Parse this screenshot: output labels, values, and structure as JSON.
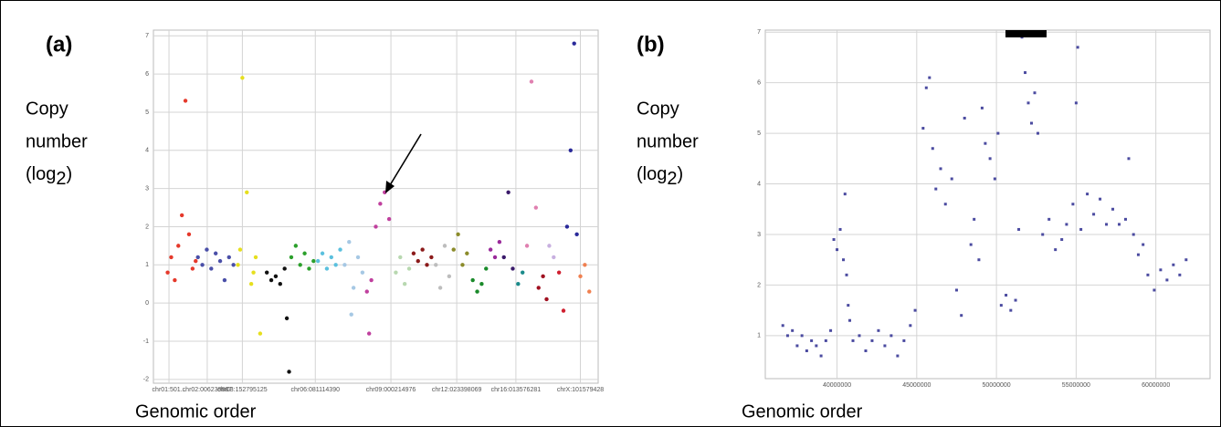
{
  "chart_data": [
    {
      "type": "scatter",
      "panel_label": "(a)",
      "ylabel_parts": [
        "Copy",
        "number",
        "(log",
        "2",
        ")"
      ],
      "xlabel": "Genomic order",
      "ylim": [
        -2.1,
        7.15
      ],
      "yticks": [
        -2,
        -1,
        0,
        1,
        2,
        3,
        4,
        5,
        6,
        7
      ],
      "xlim": [
        0,
        100
      ],
      "xticks": [
        {
          "value": 3.5,
          "label": "chr01:501..."
        },
        {
          "value": 12.1,
          "label": "chr02:006239887"
        },
        {
          "value": 20,
          "label": "chr03:152795125"
        },
        {
          "value": 36.4,
          "label": "chr06:081114390"
        },
        {
          "value": 53.4,
          "label": "chr09:000214976"
        },
        {
          "value": 68.2,
          "label": "chr12:023398069"
        },
        {
          "value": 81.5,
          "label": "chr16:013576281"
        },
        {
          "value": 96,
          "label": "chrX:101579428"
        }
      ],
      "grid": true,
      "series": [
        {
          "color": "#e5392b",
          "x": [
            3.2,
            4,
            4.8,
            5.6,
            6.4,
            7.2,
            8,
            8.8,
            9.5
          ],
          "values": [
            0.8,
            1.2,
            0.6,
            1.5,
            2.3,
            5.3,
            1.8,
            0.9,
            1.1
          ]
        },
        {
          "color": "#4a4fa8",
          "x": [
            10,
            11,
            12,
            13,
            14,
            15,
            16,
            17,
            18
          ],
          "values": [
            1.2,
            1.0,
            1.4,
            0.9,
            1.3,
            1.1,
            0.6,
            1.2,
            1.0
          ]
        },
        {
          "color": "#e6df1e",
          "x": [
            19,
            19.5,
            20,
            21,
            22,
            22.5,
            23,
            24
          ],
          "values": [
            1.0,
            1.4,
            5.9,
            2.9,
            0.5,
            0.8,
            1.2,
            -0.8
          ]
        },
        {
          "color": "#111111",
          "x": [
            25.5,
            26.5,
            27.5,
            28.5,
            29.5,
            30,
            30.5
          ],
          "values": [
            0.8,
            0.6,
            0.7,
            0.5,
            0.9,
            -0.4,
            -1.8
          ]
        },
        {
          "color": "#2ca02c",
          "x": [
            31,
            32,
            33,
            34,
            35,
            36
          ],
          "values": [
            1.2,
            1.5,
            1.0,
            1.3,
            0.9,
            1.1
          ]
        },
        {
          "color": "#5bc0de",
          "x": [
            37,
            38,
            39,
            40,
            41,
            42
          ],
          "values": [
            1.1,
            1.3,
            0.9,
            1.2,
            1.0,
            1.4
          ]
        },
        {
          "color": "#a6c8e4",
          "x": [
            43,
            44,
            44.5,
            45,
            46,
            47
          ],
          "values": [
            1.0,
            1.6,
            -0.3,
            0.4,
            1.2,
            0.8
          ]
        },
        {
          "color": "#c0409e",
          "x": [
            48,
            48.5,
            49,
            50,
            51,
            52,
            53
          ],
          "values": [
            0.3,
            -0.8,
            0.6,
            2.0,
            2.6,
            2.9,
            2.2
          ]
        },
        {
          "color": "#b8d8b0",
          "x": [
            54.5,
            55.5,
            56.5,
            57.5
          ],
          "values": [
            0.8,
            1.2,
            0.5,
            0.9
          ]
        },
        {
          "color": "#8b1a1a",
          "x": [
            58.5,
            59.5,
            60.5,
            61.5,
            62.5
          ],
          "values": [
            1.3,
            1.1,
            1.4,
            1.0,
            1.2
          ]
        },
        {
          "color": "#bdbdbd",
          "x": [
            63.5,
            64.5,
            65.5,
            66.5
          ],
          "values": [
            1.0,
            0.4,
            1.5,
            0.7
          ]
        },
        {
          "color": "#8b8b2a",
          "x": [
            67.5,
            68.5,
            69.5,
            70.5
          ],
          "values": [
            1.4,
            1.8,
            1.0,
            1.3
          ]
        },
        {
          "color": "#1a8a2a",
          "x": [
            71.8,
            72.8,
            73.8,
            74.8
          ],
          "values": [
            0.6,
            0.3,
            0.5,
            0.9
          ]
        },
        {
          "color": "#9a2a9a",
          "x": [
            75.8,
            76.8,
            77.8
          ],
          "values": [
            1.4,
            1.2,
            1.6
          ]
        },
        {
          "color": "#3a1a6a",
          "x": [
            78.8,
            79.8,
            80.8
          ],
          "values": [
            1.2,
            2.9,
            0.9
          ]
        },
        {
          "color": "#1a8a8a",
          "x": [
            82,
            83
          ],
          "values": [
            0.5,
            0.8
          ]
        },
        {
          "color": "#e080b0",
          "x": [
            84,
            85,
            86
          ],
          "values": [
            1.5,
            5.8,
            2.5
          ]
        },
        {
          "color": "#a01020",
          "x": [
            86.6,
            87.6,
            88.4
          ],
          "values": [
            0.4,
            0.7,
            0.1
          ]
        },
        {
          "color": "#c8b0e0",
          "x": [
            89,
            90
          ],
          "values": [
            1.5,
            1.2
          ]
        },
        {
          "color": "#d02030",
          "x": [
            91.2,
            92.2
          ],
          "values": [
            0.8,
            -0.2
          ]
        },
        {
          "color": "#2a2a9a",
          "x": [
            93,
            93.8,
            94.6,
            95.2
          ],
          "values": [
            2.0,
            4.0,
            6.8,
            1.8
          ]
        },
        {
          "color": "#f08050",
          "x": [
            96,
            97,
            98
          ],
          "values": [
            0.7,
            1.0,
            0.3
          ]
        }
      ]
    },
    {
      "type": "scatter",
      "panel_label": "(b)",
      "ylabel_parts": [
        "Copy",
        "number",
        "(log",
        "2",
        ")"
      ],
      "xlabel": "Genomic order",
      "ylim": [
        0.15,
        7.04
      ],
      "yticks": [
        1,
        2,
        3,
        4,
        5,
        6,
        7
      ],
      "xlim": [
        35500000,
        63400000
      ],
      "xticks": [
        40000000,
        45000000,
        50000000,
        55000000,
        60000000
      ],
      "grid": true,
      "series": [
        {
          "color": "#4b4ba0",
          "x": [
            36600000,
            36900000,
            37200000,
            37500000,
            37800000,
            38100000,
            38400000,
            38700000,
            39000000,
            39300000,
            39600000,
            39800000,
            40000000,
            40200000,
            40400000,
            40500000,
            40600000,
            40700000,
            40800000,
            41000000,
            41400000,
            41800000,
            42200000,
            42600000,
            43000000,
            43400000,
            43800000,
            44200000,
            44600000,
            44900000,
            45400000,
            45600000,
            45800000,
            46000000,
            46200000,
            46500000,
            46800000,
            47200000,
            47500000,
            47800000,
            48000000,
            48400000,
            48600000,
            48900000,
            49100000,
            49300000,
            49600000,
            49900000,
            50100000,
            50300000,
            50600000,
            50900000,
            51200000,
            51400000,
            51600000,
            51800000,
            52000000,
            52200000,
            52400000,
            52600000,
            52900000,
            53300000,
            53700000,
            54100000,
            54400000,
            54800000,
            55000000,
            55100000,
            55300000,
            55700000,
            56100000,
            56500000,
            56900000,
            57300000,
            57700000,
            58100000,
            58300000,
            58600000,
            58900000,
            59200000,
            59500000,
            59900000,
            60300000,
            60700000,
            61100000,
            61500000,
            61900000
          ],
          "values": [
            1.2,
            1.0,
            1.1,
            0.8,
            1.0,
            0.7,
            0.9,
            0.8,
            0.6,
            0.9,
            1.1,
            2.9,
            2.7,
            3.1,
            2.5,
            3.8,
            2.2,
            1.6,
            1.3,
            0.9,
            1.0,
            0.7,
            0.9,
            1.1,
            0.8,
            1.0,
            0.6,
            0.9,
            1.2,
            1.5,
            5.1,
            5.9,
            6.1,
            4.7,
            3.9,
            4.3,
            3.6,
            4.1,
            1.9,
            1.4,
            5.3,
            2.8,
            3.3,
            2.5,
            5.5,
            4.8,
            4.5,
            4.1,
            5.0,
            1.6,
            1.8,
            1.5,
            1.7,
            3.1,
            6.9,
            6.2,
            5.6,
            5.2,
            5.8,
            5.0,
            3.0,
            3.3,
            2.7,
            2.9,
            3.2,
            3.6,
            5.6,
            6.7,
            3.1,
            3.8,
            3.4,
            3.7,
            3.2,
            3.5,
            3.2,
            3.3,
            4.5,
            3.0,
            2.6,
            2.8,
            2.2,
            1.9,
            2.3,
            2.1,
            2.4,
            2.2,
            2.5
          ]
        }
      ]
    }
  ]
}
